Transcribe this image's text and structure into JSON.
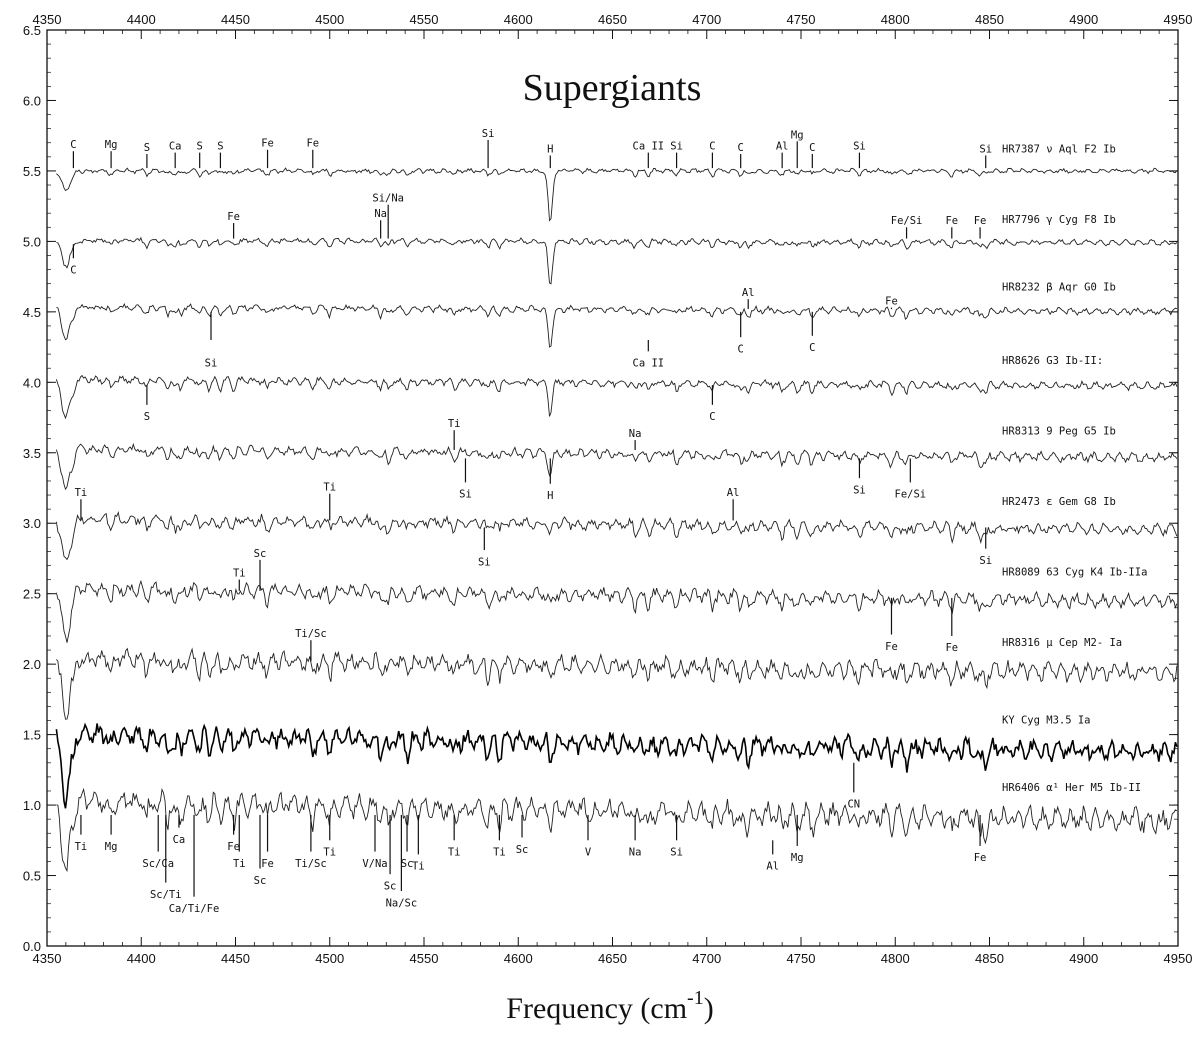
{
  "chart_data": {
    "type": "line",
    "title": "Supergiants",
    "xlabel": "Frequency (cm",
    "xlabel_sup": "-1",
    "xlabel_close": ")",
    "ylabel": "",
    "xlim": [
      4350,
      4950
    ],
    "ylim": [
      0.0,
      6.5
    ],
    "x_ticks": [
      4350,
      4400,
      4450,
      4500,
      4550,
      4600,
      4650,
      4700,
      4750,
      4800,
      4850,
      4900,
      4950
    ],
    "y_ticks": [
      "0.0",
      "0.5",
      "1.0",
      "1.5",
      "2.0",
      "2.5",
      "3.0",
      "3.5",
      "4.0",
      "4.5",
      "5.0",
      "5.5",
      "6.0",
      "6.5"
    ],
    "grid": false,
    "series": [
      {
        "name": "HR7387 ν Aql F2 Ib",
        "baseline": 5.5,
        "depth": 0.15,
        "noise": 0.01
      },
      {
        "name": "HR7796 γ Cyg F8 Ib",
        "baseline": 5.0,
        "depth": 0.2,
        "noise": 0.012
      },
      {
        "name": "HR8232 β Aqr G0 Ib",
        "baseline": 4.52,
        "depth": 0.25,
        "noise": 0.014
      },
      {
        "name": "HR8626 G3 Ib-II:",
        "baseline": 4.0,
        "depth": 0.3,
        "noise": 0.016
      },
      {
        "name": "HR8313 9 Peg G5 Ib",
        "baseline": 3.5,
        "depth": 0.32,
        "noise": 0.02
      },
      {
        "name": "HR2473 ε Gem G8 Ib",
        "baseline": 3.0,
        "depth": 0.36,
        "noise": 0.025
      },
      {
        "name": "HR8089 63 Cyg K4 Ib-IIa",
        "baseline": 2.5,
        "depth": 0.4,
        "noise": 0.03
      },
      {
        "name": "HR8316 μ Cep M2- Ia",
        "baseline": 2.0,
        "depth": 0.45,
        "noise": 0.04
      },
      {
        "name": "KY Cyg M3.5 Ia",
        "baseline": 1.45,
        "depth": 0.5,
        "noise": 0.045
      },
      {
        "name": "HR6406 α¹ Her M5 Ib-II",
        "baseline": 0.97,
        "depth": 0.55,
        "noise": 0.05
      }
    ],
    "line_markers": [
      {
        "label": "C",
        "x": 4364,
        "y_text": 5.69,
        "y1": 5.52,
        "y2": 5.64
      },
      {
        "label": "Mg",
        "x": 4384,
        "y_text": 5.69,
        "y1": 5.52,
        "y2": 5.64
      },
      {
        "label": "S",
        "x": 4403,
        "y_text": 5.67,
        "y1": 5.52,
        "y2": 5.62
      },
      {
        "label": "Ca",
        "x": 4418,
        "y_text": 5.68,
        "y1": 5.52,
        "y2": 5.63
      },
      {
        "label": "S",
        "x": 4431,
        "y_text": 5.68,
        "y1": 5.52,
        "y2": 5.63
      },
      {
        "label": "S",
        "x": 4442,
        "y_text": 5.68,
        "y1": 5.52,
        "y2": 5.63
      },
      {
        "label": "Fe",
        "x": 4467,
        "y_text": 5.7,
        "y1": 5.52,
        "y2": 5.65
      },
      {
        "label": "Fe",
        "x": 4491,
        "y_text": 5.7,
        "y1": 5.52,
        "y2": 5.65
      },
      {
        "label": "Si",
        "x": 4584,
        "y_text": 5.77,
        "y1": 5.52,
        "y2": 5.72
      },
      {
        "label": "H",
        "x": 4617,
        "y_text": 5.66,
        "y1": 5.52,
        "y2": 5.61
      },
      {
        "label": "Ca II",
        "x": 4669,
        "y_text": 5.68,
        "y1": 5.52,
        "y2": 5.63
      },
      {
        "label": "Si",
        "x": 4684,
        "y_text": 5.68,
        "y1": 5.52,
        "y2": 5.63
      },
      {
        "label": "C",
        "x": 4703,
        "y_text": 5.68,
        "y1": 5.52,
        "y2": 5.63
      },
      {
        "label": "C",
        "x": 4718,
        "y_text": 5.67,
        "y1": 5.52,
        "y2": 5.62
      },
      {
        "label": "Al",
        "x": 4740,
        "y_text": 5.68,
        "y1": 5.52,
        "y2": 5.63
      },
      {
        "label": "Mg",
        "x": 4748,
        "y_text": 5.76,
        "y1": 5.52,
        "y2": 5.71
      },
      {
        "label": "C",
        "x": 4756,
        "y_text": 5.67,
        "y1": 5.52,
        "y2": 5.62
      },
      {
        "label": "Si",
        "x": 4781,
        "y_text": 5.68,
        "y1": 5.52,
        "y2": 5.63
      },
      {
        "label": "Si",
        "x": 4848,
        "y_text": 5.66,
        "y1": 5.52,
        "y2": 5.61
      },
      {
        "label": "Fe",
        "x": 4449,
        "y_text": 5.18,
        "y1": 5.02,
        "y2": 5.13
      },
      {
        "label": "Si/Na",
        "x": 4531,
        "y_text": 5.31,
        "y1": 5.02,
        "y2": 5.26
      },
      {
        "label": "Fe/Si",
        "x": 4806,
        "y_text": 5.15,
        "y1": 5.02,
        "y2": 5.1
      },
      {
        "label": "Fe",
        "x": 4830,
        "y_text": 5.15,
        "y1": 5.02,
        "y2": 5.1
      },
      {
        "label": "Fe",
        "x": 4845,
        "y_text": 5.15,
        "y1": 5.02,
        "y2": 5.1
      },
      {
        "label": "Na",
        "x": 4527,
        "y_text": 5.2,
        "y1": 5.02,
        "y2": 5.15
      },
      {
        "label": "C",
        "x": 4364,
        "y_text": 4.8,
        "y1": 4.88,
        "y2": 4.98
      },
      {
        "label": "Al",
        "x": 4722,
        "y_text": 4.64,
        "y1": 4.52,
        "y2": 4.59
      },
      {
        "label": "Fe",
        "x": 4798,
        "y_text": 4.58,
        "y1": 4.52,
        "y2": 4.53
      },
      {
        "label": "Si",
        "x": 4437,
        "y_text": 4.14,
        "y1": 4.3,
        "y2": 4.5
      },
      {
        "label": "C",
        "x": 4718,
        "y_text": 4.24,
        "y1": 4.32,
        "y2": 4.5
      },
      {
        "label": "C",
        "x": 4756,
        "y_text": 4.25,
        "y1": 4.33,
        "y2": 4.5
      },
      {
        "label": "Ca II",
        "x": 4669,
        "y_text": 4.14,
        "y1": 4.22,
        "y2": 4.3
      },
      {
        "label": "S",
        "x": 4403,
        "y_text": 3.76,
        "y1": 3.84,
        "y2": 3.98
      },
      {
        "label": "C",
        "x": 4703,
        "y_text": 3.76,
        "y1": 3.84,
        "y2": 3.98
      },
      {
        "label": "Ti",
        "x": 4566,
        "y_text": 3.71,
        "y1": 3.52,
        "y2": 3.66
      },
      {
        "label": "Na",
        "x": 4662,
        "y_text": 3.64,
        "y1": 3.52,
        "y2": 3.59
      },
      {
        "label": "Si",
        "x": 4572,
        "y_text": 3.21,
        "y1": 3.29,
        "y2": 3.46
      },
      {
        "label": "H",
        "x": 4617,
        "y_text": 3.2,
        "y1": 3.28,
        "y2": 3.46
      },
      {
        "label": "Si",
        "x": 4781,
        "y_text": 3.24,
        "y1": 3.32,
        "y2": 3.46
      },
      {
        "label": "Fe/Si",
        "x": 4808,
        "y_text": 3.21,
        "y1": 3.29,
        "y2": 3.46
      },
      {
        "label": "Ti",
        "x": 4368,
        "y_text": 3.22,
        "y1": 3.02,
        "y2": 3.17
      },
      {
        "label": "Ti",
        "x": 4500,
        "y_text": 3.26,
        "y1": 3.02,
        "y2": 3.21
      },
      {
        "label": "Al",
        "x": 4714,
        "y_text": 3.22,
        "y1": 3.02,
        "y2": 3.17
      },
      {
        "label": "Si",
        "x": 4582,
        "y_text": 2.73,
        "y1": 2.81,
        "y2": 2.97
      },
      {
        "label": "Si",
        "x": 4848,
        "y_text": 2.74,
        "y1": 2.82,
        "y2": 2.97
      },
      {
        "label": "Sc",
        "x": 4463,
        "y_text": 2.79,
        "y1": 2.52,
        "y2": 2.74
      },
      {
        "label": "Ti",
        "x": 4452,
        "y_text": 2.65,
        "y1": 2.52,
        "y2": 2.6
      },
      {
        "label": "Ti/Sc",
        "x": 4490,
        "y_text": 2.22,
        "y1": 2.02,
        "y2": 2.17
      },
      {
        "label": "Fe",
        "x": 4798,
        "y_text": 2.13,
        "y1": 2.21,
        "y2": 2.47
      },
      {
        "label": "Fe",
        "x": 4830,
        "y_text": 2.12,
        "y1": 2.2,
        "y2": 2.47
      },
      {
        "label": "CN",
        "x": 4778,
        "y_text": 1.01,
        "y1": 1.09,
        "y2": 1.3
      },
      {
        "label": "Ti",
        "x": 4368,
        "y_text": 0.71,
        "y1": 0.79,
        "y2": 0.93
      },
      {
        "label": "Mg",
        "x": 4384,
        "y_text": 0.71,
        "y1": 0.79,
        "y2": 0.93
      },
      {
        "label": "Ca",
        "x": 4420,
        "y_text": 0.76,
        "y1": 0.84,
        "y2": 0.93
      },
      {
        "label": "Fe",
        "x": 4449,
        "y_text": 0.71,
        "y1": 0.79,
        "y2": 0.93
      },
      {
        "label": "Ti",
        "x": 4452,
        "y_text": 0.59,
        "y1": 0.67,
        "y2": 0.93
      },
      {
        "label": "Sc",
        "x": 4463,
        "y_text": 0.47,
        "y1": 0.55,
        "y2": 0.93
      },
      {
        "label": "Fe",
        "x": 4467,
        "y_text": 0.59,
        "y1": 0.67,
        "y2": 0.93
      },
      {
        "label": "Ti",
        "x": 4500,
        "y_text": 0.67,
        "y1": 0.75,
        "y2": 0.93
      },
      {
        "label": "Ti/Sc",
        "x": 4490,
        "y_text": 0.59,
        "y1": 0.67,
        "y2": 0.93
      },
      {
        "label": "V/Na",
        "x": 4524,
        "y_text": 0.59,
        "y1": 0.67,
        "y2": 0.93
      },
      {
        "label": "Sc",
        "x": 4532,
        "y_text": 0.43,
        "y1": 0.51,
        "y2": 0.93
      },
      {
        "label": "Na/Sc",
        "x": 4538,
        "y_text": 0.31,
        "y1": 0.39,
        "y2": 0.93
      },
      {
        "label": "Sc",
        "x": 4541,
        "y_text": 0.59,
        "y1": 0.67,
        "y2": 0.93
      },
      {
        "label": "Ti",
        "x": 4547,
        "y_text": 0.57,
        "y1": 0.65,
        "y2": 0.93
      },
      {
        "label": "Ti",
        "x": 4566,
        "y_text": 0.67,
        "y1": 0.75,
        "y2": 0.93
      },
      {
        "label": "Ti",
        "x": 4590,
        "y_text": 0.67,
        "y1": 0.75,
        "y2": 0.93
      },
      {
        "label": "Sc",
        "x": 4602,
        "y_text": 0.69,
        "y1": 0.77,
        "y2": 0.93
      },
      {
        "label": "V",
        "x": 4637,
        "y_text": 0.67,
        "y1": 0.75,
        "y2": 0.93
      },
      {
        "label": "Na",
        "x": 4662,
        "y_text": 0.67,
        "y1": 0.75,
        "y2": 0.93
      },
      {
        "label": "Si",
        "x": 4684,
        "y_text": 0.67,
        "y1": 0.75,
        "y2": 0.93
      },
      {
        "label": "Al",
        "x": 4735,
        "y_text": 0.57,
        "y1": 0.65,
        "y2": 0.75
      },
      {
        "label": "Mg",
        "x": 4748,
        "y_text": 0.63,
        "y1": 0.71,
        "y2": 0.93
      },
      {
        "label": "Fe",
        "x": 4845,
        "y_text": 0.63,
        "y1": 0.71,
        "y2": 0.93
      },
      {
        "label": "Sc/Ca",
        "x": 4409,
        "y_text": 0.59,
        "y1": 0.67,
        "y2": 0.93
      },
      {
        "label": "Sc/Ti",
        "x": 4413,
        "y_text": 0.37,
        "y1": 0.45,
        "y2": 0.93
      },
      {
        "label": "Ca/Ti/Fe",
        "x": 4428,
        "y_text": 0.27,
        "y1": 0.35,
        "y2": 0.93
      }
    ]
  }
}
